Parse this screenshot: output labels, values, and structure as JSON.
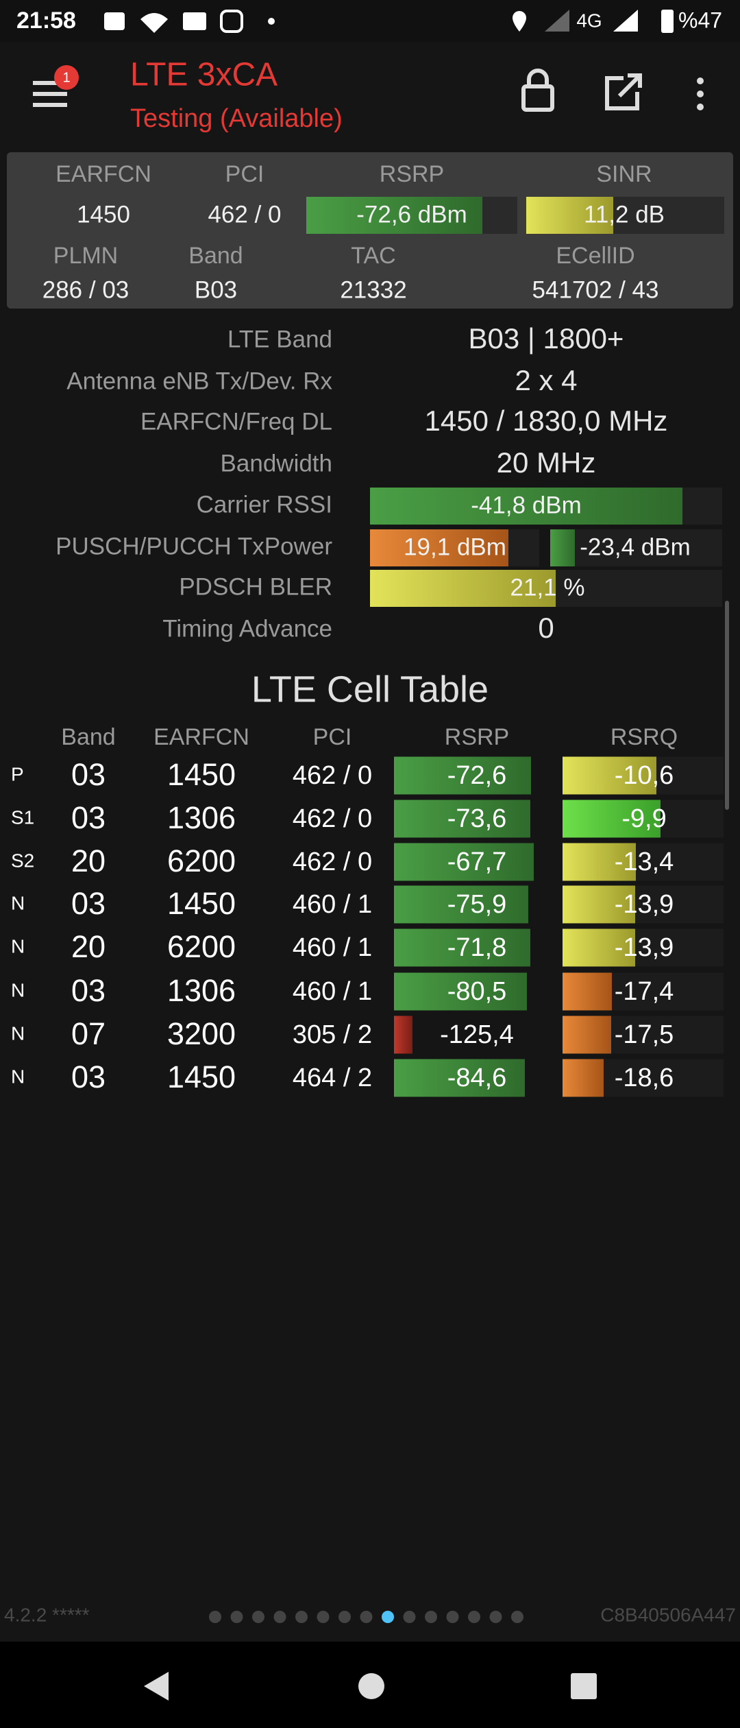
{
  "status_bar": {
    "time": "21:58",
    "network": "4G",
    "battery": "%47"
  },
  "app_bar": {
    "badge": "1",
    "title": "LTE 3xCA",
    "subtitle": "Testing (Available)"
  },
  "summary": {
    "headers": [
      "EARFCN",
      "PCI",
      "RSRP",
      "SINR"
    ],
    "values": [
      "1450",
      "462 / 0",
      "-72,6 dBm",
      "11,2 dB"
    ],
    "headers2": [
      "PLMN",
      "Band",
      "TAC",
      "ECellID"
    ],
    "values2": [
      "286 / 03",
      "B03",
      "21332",
      "541702 / 43"
    ]
  },
  "details": [
    {
      "label": "LTE Band",
      "value": "B03 | 1800+"
    },
    {
      "label": "Antenna eNB Tx/Dev. Rx",
      "value": "2 x 4"
    },
    {
      "label": "EARFCN/Freq DL",
      "value": "1450 / 1830,0 MHz"
    },
    {
      "label": "Bandwidth",
      "value": "20 MHz"
    },
    {
      "label": "Carrier RSSI",
      "value": "-41,8 dBm"
    },
    {
      "label": "PUSCH/PUCCH TxPower",
      "values": [
        "19,1 dBm",
        "-23,4 dBm"
      ]
    },
    {
      "label": "PDSCH BLER",
      "value": "21,1 %"
    },
    {
      "label": "Timing Advance",
      "value": "0"
    }
  ],
  "cell_table": {
    "title": "LTE Cell Table",
    "columns": [
      "Band",
      "EARFCN",
      "PCI",
      "RSRP",
      "RSRQ"
    ],
    "rows": [
      [
        "P",
        "03",
        "1450",
        "462 / 0",
        "-72,6",
        "-10,6"
      ],
      [
        "S1",
        "03",
        "1306",
        "462 / 0",
        "-73,6",
        "-9,9"
      ],
      [
        "S2",
        "20",
        "6200",
        "462 / 0",
        "-67,7",
        "-13,4"
      ],
      [
        "N",
        "03",
        "1450",
        "460 / 1",
        "-75,9",
        "-13,9"
      ],
      [
        "N",
        "20",
        "6200",
        "460 / 1",
        "-71,8",
        "-13,9"
      ],
      [
        "N",
        "03",
        "1306",
        "460 / 1",
        "-80,5",
        "-17,4"
      ],
      [
        "N",
        "07",
        "3200",
        "305 / 2",
        "-125,4",
        "-17,5"
      ],
      [
        "N",
        "03",
        "1450",
        "464 / 2",
        "-84,6",
        "-18,6"
      ]
    ]
  },
  "footer": {
    "version": "4.2.2 *****",
    "device_id": "C8B40506A447"
  }
}
